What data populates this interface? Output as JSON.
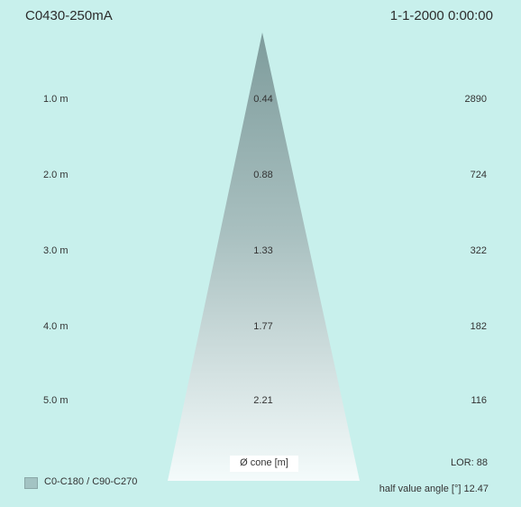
{
  "header": {
    "title": "C0430-250mA",
    "timestamp": "1-1-2000 0:00:00"
  },
  "rows": [
    {
      "distance": "1.0 m",
      "diameter": "0.44",
      "illuminance": "2890"
    },
    {
      "distance": "2.0 m",
      "diameter": "0.88",
      "illuminance": "724"
    },
    {
      "distance": "3.0 m",
      "diameter": "1.33",
      "illuminance": "322"
    },
    {
      "distance": "4.0 m",
      "diameter": "1.77",
      "illuminance": "182"
    },
    {
      "distance": "5.0 m",
      "diameter": "2.21",
      "illuminance": "116"
    }
  ],
  "footer": {
    "cone_label": "Ø cone [m]",
    "lor": "LOR: 88",
    "legend_label": "C0-C180 / C90-C270",
    "half_value_angle": "half value angle [°] 12.47"
  },
  "colors": {
    "background": "#c8f0ec",
    "cone_top": "#7e9c9c",
    "cone_bottom": "#f4fbfb"
  }
}
